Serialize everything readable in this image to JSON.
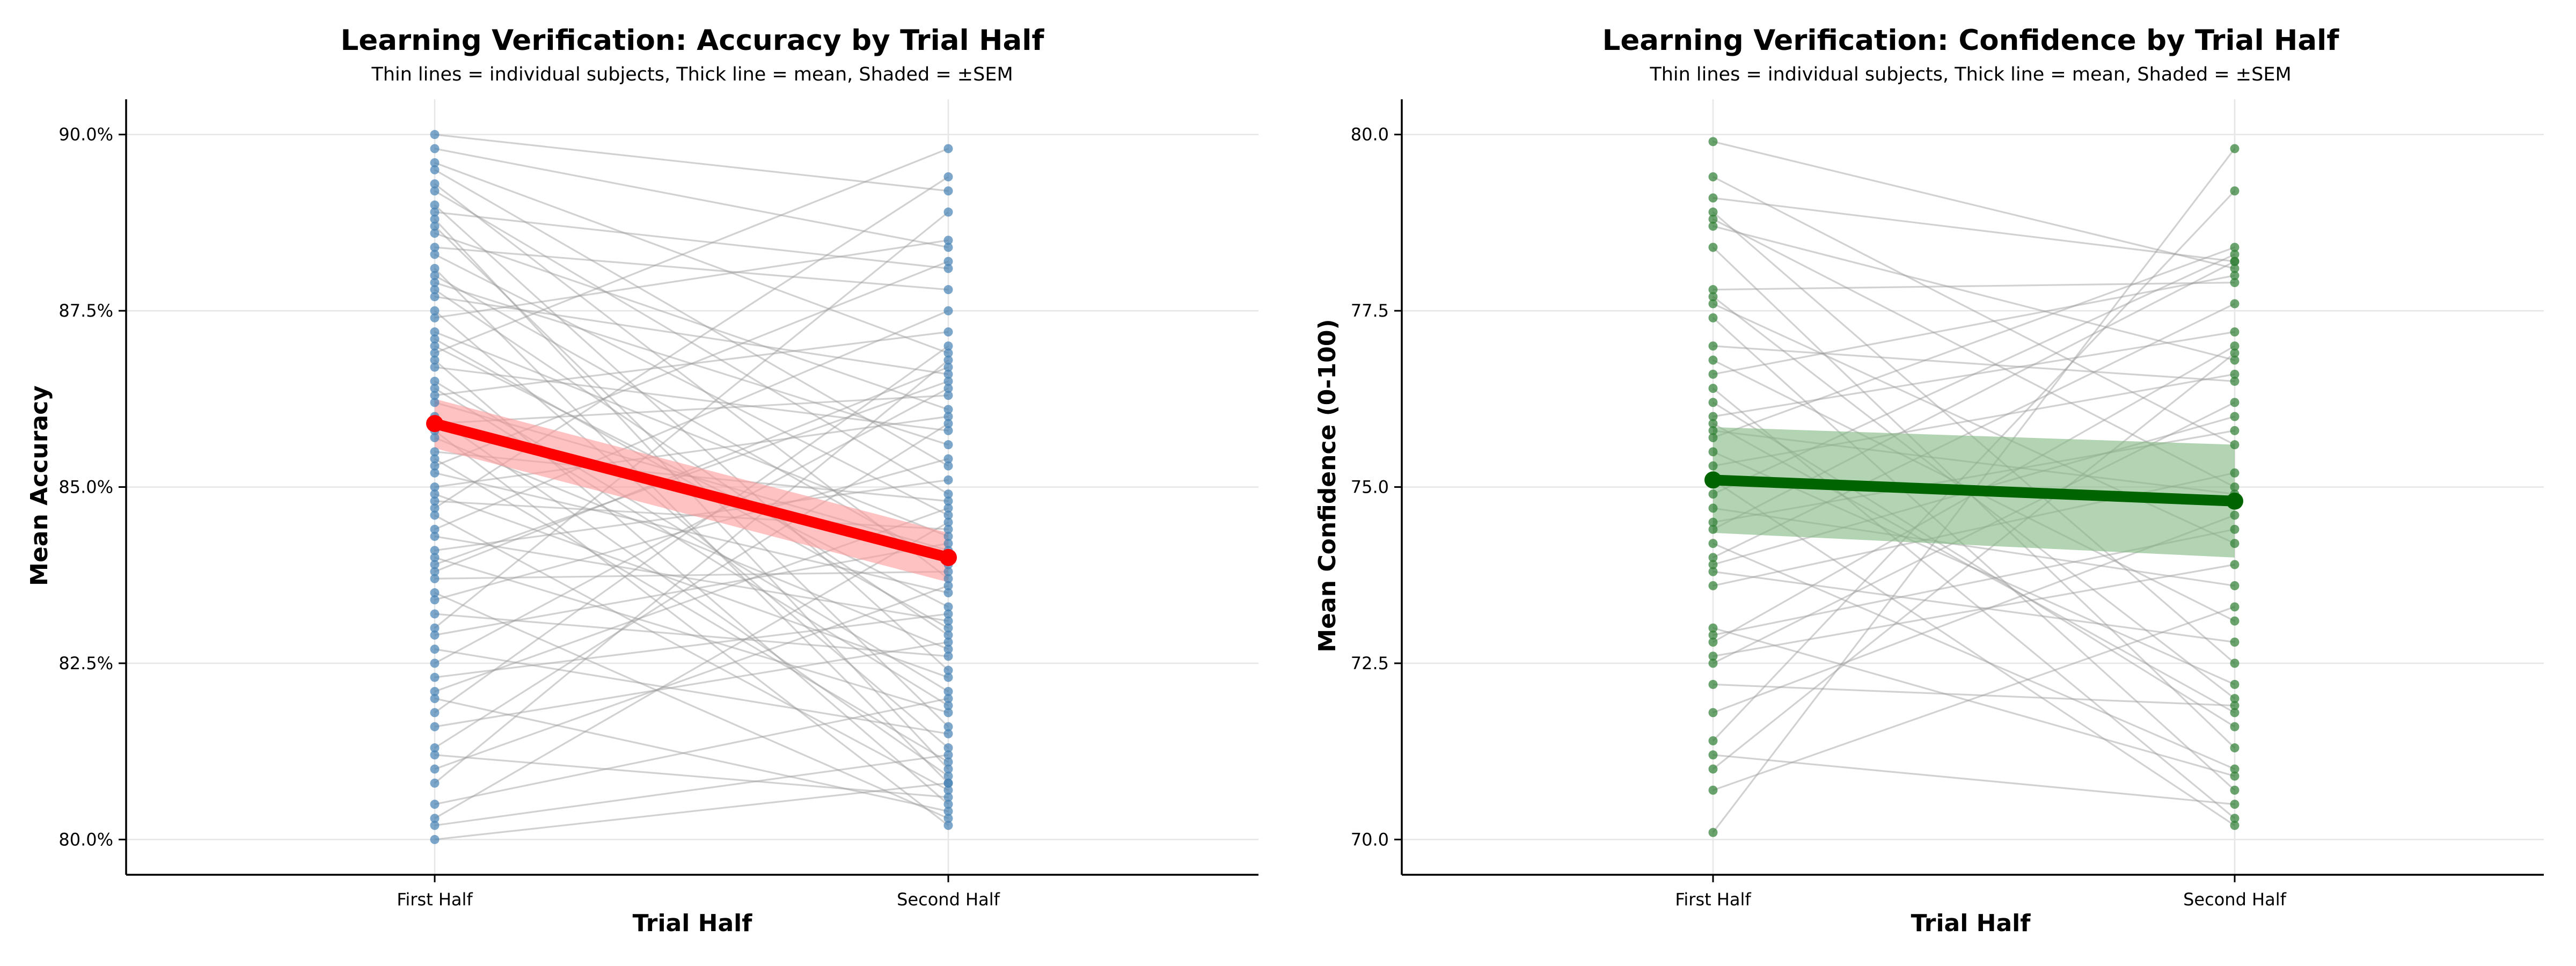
{
  "chart_data": [
    {
      "type": "line",
      "title": "Learning Verification: Accuracy by Trial Half",
      "subtitle": "Thin lines = individual subjects, Thick line = mean, Shaded = ±SEM",
      "xlabel": "Trial Half",
      "ylabel": "Mean Accuracy",
      "categories": [
        "First Half",
        "Second Half"
      ],
      "ylim": [
        79.5,
        90.5
      ],
      "yticks": [
        80.0,
        82.5,
        85.0,
        87.5,
        90.0
      ],
      "ytick_labels": [
        "80.0%",
        "82.5%",
        "85.0%",
        "87.5%",
        "90.0%"
      ],
      "grid": true,
      "subject_color": "#4682b4",
      "subject_line_color": "#999999",
      "mean_color": "#ff0000",
      "band_color": "#ff9999",
      "mean": {
        "values": [
          85.9,
          84.0
        ],
        "sem": [
          0.35,
          0.35
        ]
      },
      "subjects": [
        [
          90.0,
          89.2
        ],
        [
          89.8,
          88.4
        ],
        [
          89.6,
          86.9
        ],
        [
          89.5,
          85.3
        ],
        [
          89.3,
          83.7
        ],
        [
          89.2,
          84.9
        ],
        [
          89.0,
          82.4
        ],
        [
          88.9,
          88.1
        ],
        [
          88.7,
          81.6
        ],
        [
          88.6,
          86.1
        ],
        [
          88.4,
          87.8
        ],
        [
          88.3,
          84.6
        ],
        [
          88.1,
          80.8
        ],
        [
          88.0,
          83.9
        ],
        [
          87.9,
          85.6
        ],
        [
          87.8,
          82.9
        ],
        [
          87.7,
          86.6
        ],
        [
          87.5,
          81.3
        ],
        [
          87.4,
          88.5
        ],
        [
          87.2,
          84.3
        ],
        [
          87.0,
          83.3
        ],
        [
          86.8,
          80.5
        ],
        [
          86.7,
          85.8
        ],
        [
          86.5,
          82.1
        ],
        [
          86.3,
          87.2
        ],
        [
          86.2,
          84.1
        ],
        [
          86.0,
          80.9
        ],
        [
          85.9,
          86.3
        ],
        [
          85.7,
          82.7
        ],
        [
          85.5,
          84.8
        ],
        [
          85.4,
          81.1
        ],
        [
          85.3,
          88.2
        ],
        [
          85.2,
          83.5
        ],
        [
          85.0,
          86.0
        ],
        [
          84.9,
          82.3
        ],
        [
          84.8,
          84.4
        ],
        [
          84.6,
          80.7
        ],
        [
          84.4,
          87.5
        ],
        [
          84.3,
          83.1
        ],
        [
          84.1,
          85.1
        ],
        [
          84.0,
          81.8
        ],
        [
          83.8,
          86.7
        ],
        [
          83.7,
          83.8
        ],
        [
          83.5,
          80.3
        ],
        [
          83.4,
          85.4
        ],
        [
          83.2,
          82.6
        ],
        [
          83.0,
          88.9
        ],
        [
          82.9,
          84.2
        ],
        [
          82.7,
          81.5
        ],
        [
          82.5,
          86.4
        ],
        [
          82.3,
          83.2
        ],
        [
          82.1,
          84.7
        ],
        [
          82.0,
          80.4
        ],
        [
          81.8,
          87.0
        ],
        [
          81.6,
          82.8
        ],
        [
          81.3,
          85.9
        ],
        [
          81.2,
          80.6
        ],
        [
          81.0,
          83.6
        ],
        [
          80.8,
          86.8
        ],
        [
          80.5,
          82.0
        ],
        [
          80.3,
          84.5
        ],
        [
          80.2,
          81.2
        ],
        [
          80.0,
          80.8
        ],
        [
          86.9,
          89.8
        ],
        [
          88.8,
          81.0
        ],
        [
          85.8,
          80.2
        ],
        [
          84.7,
          89.4
        ],
        [
          87.1,
          83.0
        ],
        [
          83.9,
          86.5
        ],
        [
          86.4,
          81.9
        ]
      ]
    },
    {
      "type": "line",
      "title": "Learning Verification: Confidence by Trial Half",
      "subtitle": "Thin lines = individual subjects, Thick line = mean, Shaded = ±SEM",
      "xlabel": "Trial Half",
      "ylabel": "Mean Confidence (0-100)",
      "categories": [
        "First Half",
        "Second Half"
      ],
      "ylim": [
        69.5,
        80.5
      ],
      "yticks": [
        70.0,
        72.5,
        75.0,
        77.5,
        80.0
      ],
      "ytick_labels": [
        "70.0",
        "72.5",
        "75.0",
        "77.5",
        "80.0"
      ],
      "grid": true,
      "subject_color": "#2e7d32",
      "subject_line_color": "#999999",
      "mean_color": "#006400",
      "band_color": "#7fb77e",
      "mean": {
        "values": [
          75.1,
          74.8
        ],
        "sem": [
          0.75,
          0.8
        ]
      },
      "subjects": [
        [
          79.9,
          78.1
        ],
        [
          79.4,
          75.6
        ],
        [
          79.1,
          78.2
        ],
        [
          78.9,
          72.5
        ],
        [
          78.7,
          76.8
        ],
        [
          78.4,
          71.3
        ],
        [
          77.8,
          77.9
        ],
        [
          77.6,
          74.2
        ],
        [
          77.4,
          70.7
        ],
        [
          77.0,
          76.5
        ],
        [
          76.8,
          73.1
        ],
        [
          76.6,
          78.0
        ],
        [
          76.2,
          71.6
        ],
        [
          76.0,
          77.2
        ],
        [
          75.8,
          74.9
        ],
        [
          75.5,
          72.2
        ],
        [
          75.3,
          76.6
        ],
        [
          75.1,
          70.2
        ],
        [
          74.9,
          78.3
        ],
        [
          74.7,
          73.6
        ],
        [
          74.5,
          75.8
        ],
        [
          74.2,
          71.0
        ],
        [
          74.0,
          77.6
        ],
        [
          73.8,
          72.8
        ],
        [
          73.6,
          75.2
        ],
        [
          73.0,
          70.9
        ],
        [
          72.8,
          77.0
        ],
        [
          72.6,
          73.9
        ],
        [
          72.5,
          76.2
        ],
        [
          72.2,
          71.9
        ],
        [
          71.8,
          74.6
        ],
        [
          71.4,
          79.2
        ],
        [
          71.2,
          70.5
        ],
        [
          71.0,
          76.9
        ],
        [
          70.7,
          73.3
        ],
        [
          70.1,
          79.8
        ],
        [
          78.8,
          75.0
        ],
        [
          77.7,
          72.0
        ],
        [
          75.7,
          78.4
        ],
        [
          73.9,
          76.0
        ],
        [
          76.4,
          70.3
        ],
        [
          72.9,
          74.4
        ],
        [
          74.4,
          78.2
        ],
        [
          75.9,
          71.8
        ]
      ]
    }
  ]
}
